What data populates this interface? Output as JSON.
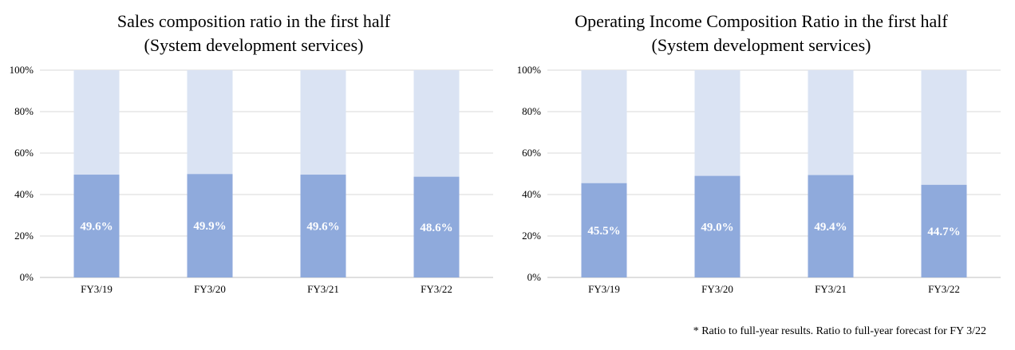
{
  "colors": {
    "lower": "#8faadc",
    "upper": "#dae3f3",
    "grid": "#d9d9d9",
    "axis": "#bfbfbf",
    "label": "#ffffff"
  },
  "chart_data": [
    {
      "type": "bar",
      "stacked": true,
      "title_line1": "Sales composition ratio in the first half",
      "title_line2": "(System development services)",
      "categories": [
        "FY3/19",
        "FY3/20",
        "FY3/21",
        "FY3/22"
      ],
      "values": [
        49.6,
        49.9,
        49.6,
        48.6
      ],
      "data_labels": [
        "49.6%",
        "49.9%",
        "49.6%",
        "48.6%"
      ],
      "ylim": [
        0,
        100
      ],
      "yticks": [
        "0%",
        "20%",
        "40%",
        "60%",
        "80%",
        "100%"
      ],
      "grid": true
    },
    {
      "type": "bar",
      "stacked": true,
      "title_line1": "Operating Income Composition Ratio in the first half",
      "title_line2": "(System development services)",
      "categories": [
        "FY3/19",
        "FY3/20",
        "FY3/21",
        "FY3/22"
      ],
      "values": [
        45.5,
        49.0,
        49.4,
        44.7
      ],
      "data_labels": [
        "45.5%",
        "49.0%",
        "49.4%",
        "44.7%"
      ],
      "ylim": [
        0,
        100
      ],
      "yticks": [
        "0%",
        "20%",
        "40%",
        "60%",
        "80%",
        "100%"
      ],
      "grid": true
    }
  ],
  "footnote": "* Ratio to full-year results. Ratio to full-year forecast for FY 3/22"
}
